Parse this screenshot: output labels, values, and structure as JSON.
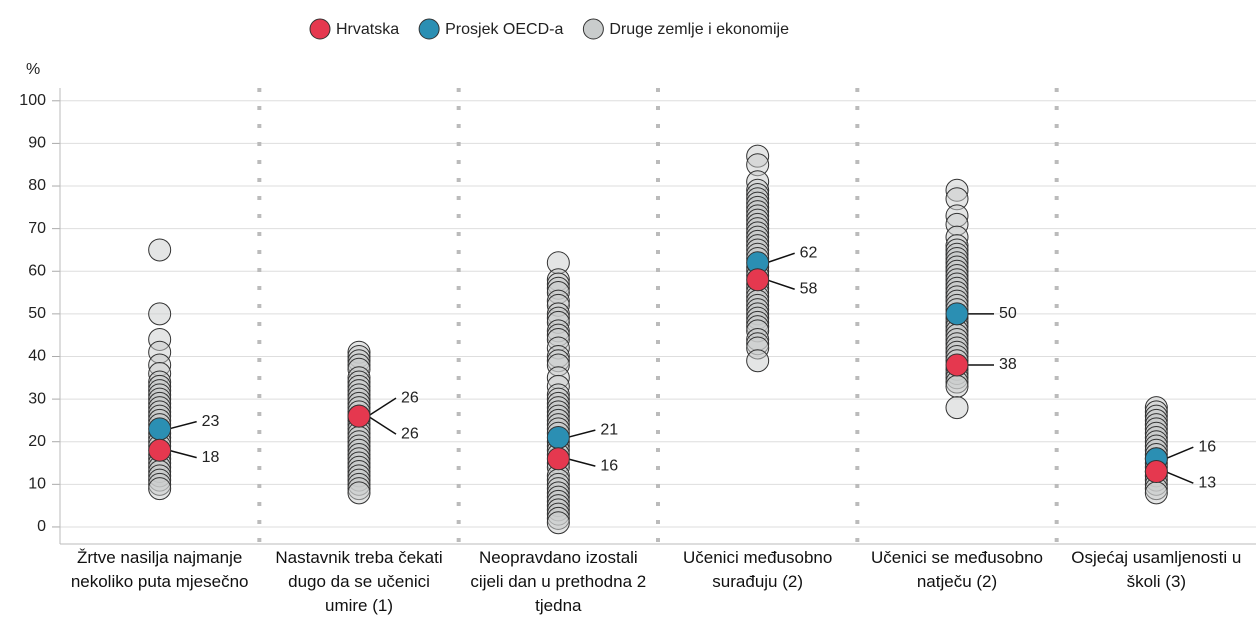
{
  "chart_data": {
    "type": "strip",
    "y_label": "%",
    "categories": [
      "Žrtve nasilja najmanje nekoliko puta mjesečno",
      "Nastavnik treba čekati dugo da se učenici umire (1)",
      "Neopravdano izostali cijeli dan u prethodna 2 tjedna",
      "Učenici međusobno surađuju (2)",
      "Učenici se međusobno natječu (2)",
      "Osjećaj usamljenosti u školi (3)"
    ],
    "ylim": [
      -4,
      103
    ],
    "yticks": [
      0,
      10,
      20,
      30,
      40,
      50,
      60,
      70,
      80,
      90,
      100
    ],
    "grid": true,
    "legend": "top",
    "series": [
      {
        "name": "Hrvatska",
        "color": "#e5384f",
        "values": [
          18,
          26,
          16,
          58,
          38,
          13
        ]
      },
      {
        "name": "Prosjek OECD-a",
        "color": "#2b8fb3",
        "values": [
          23,
          26,
          21,
          62,
          50,
          16
        ]
      },
      {
        "name": "Druge zemlje i ekonomije",
        "color": "#c9cccc",
        "values": [
          [
            65,
            50,
            44,
            41,
            38,
            36,
            34,
            33,
            32,
            31,
            30,
            29,
            28,
            27,
            26,
            25,
            24,
            22,
            21,
            20,
            19,
            17,
            16,
            15,
            14,
            13,
            12,
            11,
            10,
            9
          ],
          [
            41,
            40,
            39,
            38,
            37,
            35,
            34,
            33,
            32,
            31,
            30,
            29,
            28,
            27,
            25,
            24,
            23,
            22,
            21,
            20,
            19,
            18,
            17,
            16,
            15,
            14,
            13,
            12,
            11,
            10,
            9,
            8
          ],
          [
            62,
            58,
            57,
            56,
            55,
            53,
            52,
            50,
            49,
            48,
            46,
            45,
            44,
            42,
            40,
            39,
            38,
            35,
            33,
            31,
            30,
            29,
            28,
            27,
            26,
            25,
            24,
            23,
            22,
            20,
            19,
            18,
            17,
            15,
            14,
            12,
            11,
            10,
            9,
            8,
            7,
            6,
            5,
            4,
            3,
            2,
            1
          ],
          [
            87,
            85,
            81,
            79,
            78,
            77,
            76,
            75,
            74,
            73,
            72,
            71,
            70,
            69,
            68,
            67,
            66,
            65,
            64,
            63,
            61,
            60,
            59,
            57,
            56,
            55,
            54,
            53,
            52,
            51,
            50,
            49,
            48,
            47,
            46,
            44,
            43,
            42,
            39
          ],
          [
            79,
            77,
            73,
            71,
            68,
            66,
            65,
            64,
            63,
            62,
            61,
            60,
            59,
            58,
            57,
            56,
            55,
            54,
            53,
            52,
            51,
            49,
            48,
            47,
            46,
            45,
            44,
            43,
            42,
            41,
            40,
            39,
            37,
            36,
            35,
            34,
            33,
            28
          ],
          [
            28,
            27,
            26,
            25,
            24,
            23,
            22,
            21,
            20,
            19,
            18,
            17,
            16,
            15,
            14,
            13,
            12,
            11,
            10,
            9,
            8
          ]
        ]
      }
    ]
  }
}
